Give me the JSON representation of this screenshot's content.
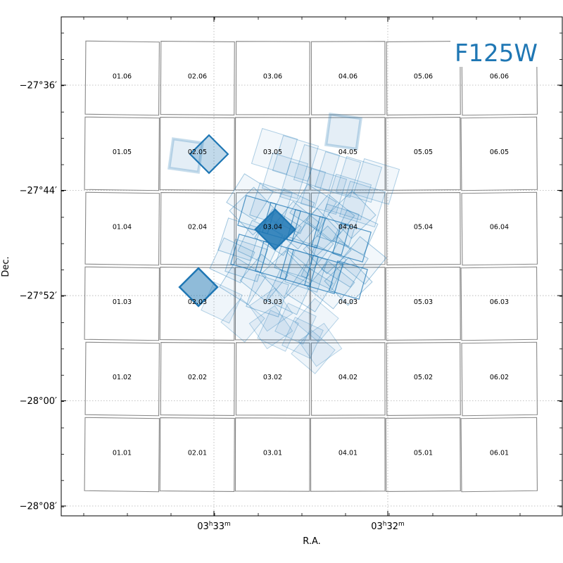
{
  "chart_data": {
    "type": "scatter",
    "title": "",
    "filter_label": "F125W",
    "xlabel": "R.A.",
    "ylabel": "Dec.",
    "ylim": [
      -28.15,
      -27.5
    ],
    "yticks": [
      {
        "value": -27.6,
        "label": "−27°36′"
      },
      {
        "value": -27.7333,
        "label": "−27°44′"
      },
      {
        "value": -27.8667,
        "label": "−27°52′"
      },
      {
        "value": -28.0,
        "label": "−28°00′"
      },
      {
        "value": -28.1333,
        "label": "−28°08′"
      }
    ],
    "xticks": [
      {
        "value": 0,
        "h": "03",
        "m": "33"
      },
      {
        "value": 1,
        "h": "03",
        "m": "32"
      }
    ],
    "grid": true,
    "accent_color": "#1f77b4",
    "tile_edge_color": "#888888",
    "tiles": [
      [
        "01.06",
        "02.06",
        "03.06",
        "04.06",
        "05.06",
        "06.06"
      ],
      [
        "01.05",
        "02.05",
        "03.05",
        "04.05",
        "05.05",
        "06.05"
      ],
      [
        "01.04",
        "02.04",
        "03.04",
        "04.04",
        "05.04",
        "06.04"
      ],
      [
        "01.03",
        "02.03",
        "03.03",
        "04.03",
        "05.03",
        "06.03"
      ],
      [
        "01.02",
        "02.02",
        "03.02",
        "04.02",
        "05.02",
        "06.02"
      ],
      [
        "01.01",
        "02.01",
        "03.01",
        "04.01",
        "05.01",
        "06.01"
      ]
    ]
  }
}
